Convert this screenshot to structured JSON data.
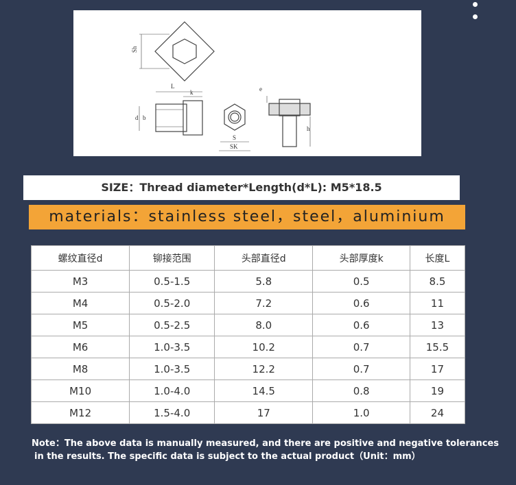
{
  "drawing": {
    "labels": [
      "Sh",
      "L",
      "k",
      "d",
      "b",
      "S",
      "SK",
      "e",
      "h"
    ]
  },
  "size_label": "SIZE：Thread diameter*Length(d*L): M5*18.5",
  "materials": "materials：stainless steel，steel，aluminium",
  "table": {
    "header": [
      "螺纹直径d",
      "铆接范围",
      "头部直径d",
      "头部厚度k",
      "长度L"
    ],
    "rows": [
      [
        "M3",
        "0.5-1.5",
        "5.8",
        "0.5",
        "8.5"
      ],
      [
        "M4",
        "0.5-2.0",
        "7.2",
        "0.6",
        "11"
      ],
      [
        "M5",
        "0.5-2.5",
        "8.0",
        "0.6",
        "13"
      ],
      [
        "M6",
        "1.0-3.5",
        "10.2",
        "0.7",
        "15.5"
      ],
      [
        "M8",
        "1.0-3.5",
        "12.2",
        "0.7",
        "17"
      ],
      [
        "M10",
        "1.0-4.0",
        "14.5",
        "0.8",
        "19"
      ],
      [
        "M12",
        "1.5-4.0",
        "17",
        "1.0",
        "24"
      ]
    ]
  },
  "note": [
    "Note：The above data is manually measured, and there are positive and negative tolerances",
    "in the results. The specific data is subject to the actual product（Unit：mm）"
  ]
}
